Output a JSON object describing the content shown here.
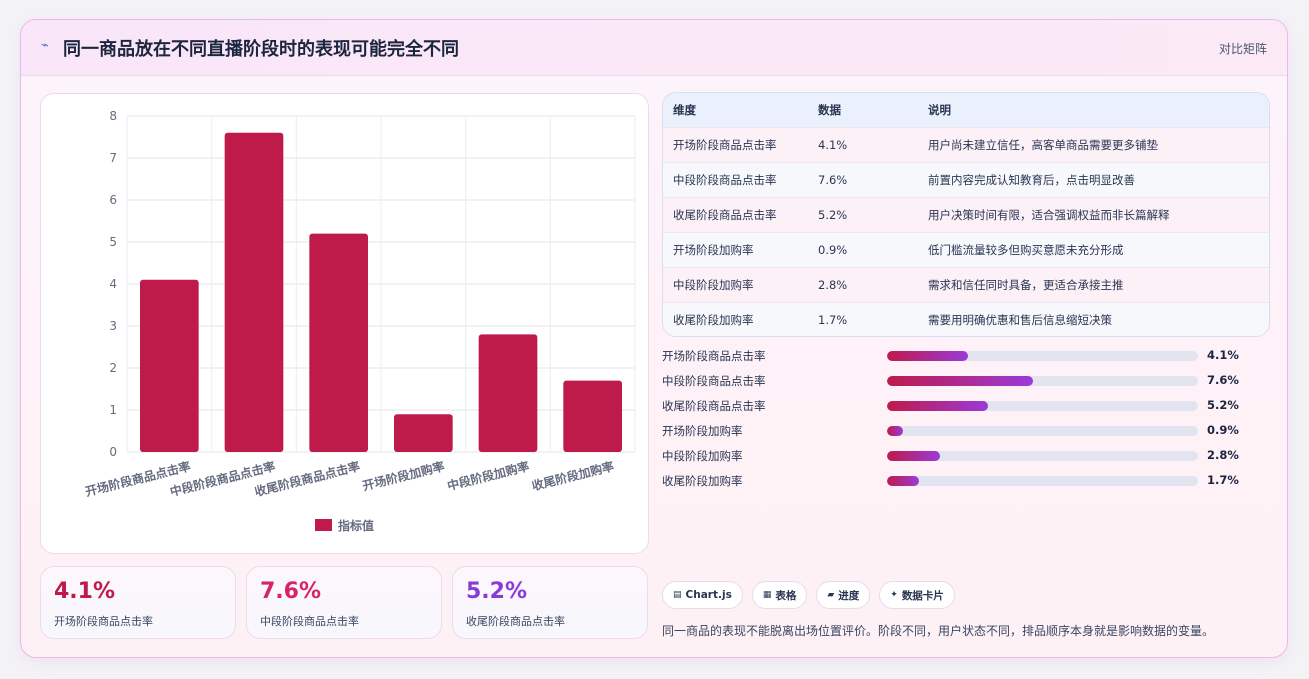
{
  "header": {
    "icon": "sparkle-icon",
    "title": "同一商品放在不同直播阶段时的表现可能完全不同",
    "badge": "对比矩阵"
  },
  "colors": {
    "bar": "#be1a4a",
    "stat1": "#be1a4a",
    "stat2": "#d6246a",
    "stat3": "#8a3ad6"
  },
  "chart_data": {
    "type": "bar",
    "categories": [
      "开场阶段商品点击率",
      "中段阶段商品点击率",
      "收尾阶段商品点击率",
      "开场阶段加购率",
      "中段阶段加购率",
      "收尾阶段加购率"
    ],
    "series": [
      {
        "name": "指标值",
        "values": [
          4.1,
          7.6,
          5.2,
          0.9,
          2.8,
          1.7
        ]
      }
    ],
    "ylim": [
      0,
      8
    ],
    "yticks": [
      0,
      1,
      2,
      3,
      4,
      5,
      6,
      7,
      8
    ],
    "grid": true,
    "legend": "bottom"
  },
  "table": {
    "headers": [
      "维度",
      "数据",
      "说明"
    ],
    "rows": [
      [
        "开场阶段商品点击率",
        "4.1%",
        "用户尚未建立信任，高客单商品需要更多铺垫"
      ],
      [
        "中段阶段商品点击率",
        "7.6%",
        "前置内容完成认知教育后，点击明显改善"
      ],
      [
        "收尾阶段商品点击率",
        "5.2%",
        "用户决策时间有限，适合强调权益而非长篇解释"
      ],
      [
        "开场阶段加购率",
        "0.9%",
        "低门槛流量较多但购买意愿未充分形成"
      ],
      [
        "中段阶段加购率",
        "2.8%",
        "需求和信任同时具备，更适合承接主推"
      ],
      [
        "收尾阶段加购率",
        "1.7%",
        "需要用明确优惠和售后信息缩短决策"
      ]
    ]
  },
  "progress": [
    {
      "label": "开场阶段商品点击率",
      "value_text": "4.1%",
      "fraction": 0.261
    },
    {
      "label": "中段阶段商品点击率",
      "value_text": "7.6%",
      "fraction": 0.471
    },
    {
      "label": "收尾阶段商品点击率",
      "value_text": "5.2%",
      "fraction": 0.325
    },
    {
      "label": "开场阶段加购率",
      "value_text": "0.9%",
      "fraction": 0.051
    },
    {
      "label": "中段阶段加购率",
      "value_text": "2.8%",
      "fraction": 0.169
    },
    {
      "label": "收尾阶段加购率",
      "value_text": "1.7%",
      "fraction": 0.102
    }
  ],
  "stats": [
    {
      "value": "4.1%",
      "label": "开场阶段商品点击率"
    },
    {
      "value": "7.6%",
      "label": "中段阶段商品点击率"
    },
    {
      "value": "5.2%",
      "label": "收尾阶段商品点击率"
    }
  ],
  "chips": [
    {
      "icon": "chart-icon",
      "label": "Chart.js"
    },
    {
      "icon": "table-icon",
      "label": "表格"
    },
    {
      "icon": "progress-icon",
      "label": "进度"
    },
    {
      "icon": "card-icon",
      "label": "数据卡片"
    }
  ],
  "footnote": "同一商品的表现不能脱离出场位置评价。阶段不同，用户状态不同，排品顺序本身就是影响数据的变量。"
}
